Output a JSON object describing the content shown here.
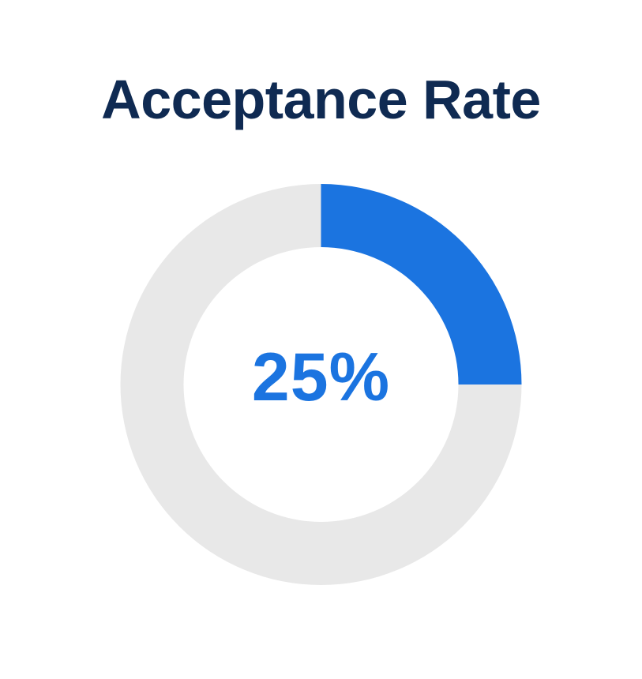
{
  "title": "Acceptance Rate",
  "colors": {
    "title": "#0f2a52",
    "accent": "#1b74e0",
    "track": "#e8e8e8",
    "background": "#ffffff"
  },
  "chart_data": {
    "type": "pie",
    "title": "Acceptance Rate",
    "center_label": "25%",
    "slices": [
      {
        "value": 25,
        "color": "#1b74e0"
      },
      {
        "value": 75,
        "color": "#e8e8e8"
      }
    ]
  }
}
